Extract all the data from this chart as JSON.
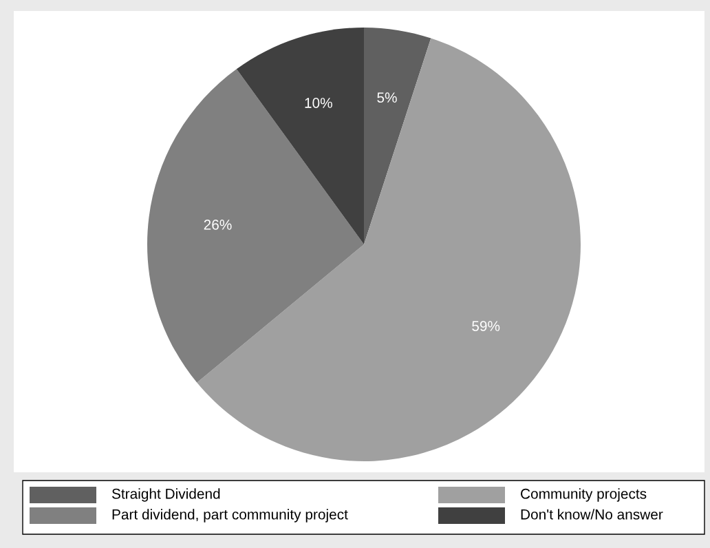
{
  "chart_data": {
    "type": "pie",
    "categories": [
      "Straight Dividend",
      "Community projects",
      "Part dividend, part community project",
      "Don't know/No answer"
    ],
    "values": [
      5,
      59,
      26,
      10
    ],
    "colors": [
      "#606060",
      "#a0a0a0",
      "#808080",
      "#404040"
    ],
    "value_labels": [
      "5%",
      "59%",
      "26%",
      "10%"
    ],
    "legend": "bottom"
  }
}
